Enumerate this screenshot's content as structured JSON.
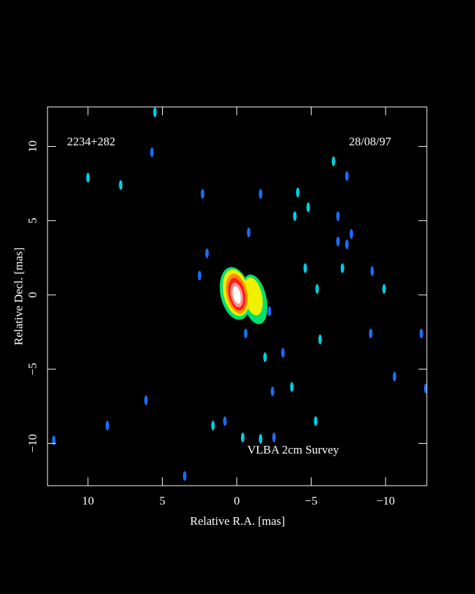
{
  "chart_data": {
    "type": "image",
    "source_name": "2234+282",
    "date": "28/08/97",
    "annotation": "VLBA 2cm Survey",
    "x_label": "Relative R.A. [mas]",
    "y_label": "Relative Decl. [mas]",
    "xlim": [
      12.72,
      -12.77
    ],
    "ylim": [
      -12.85,
      12.66
    ],
    "xticks": [
      10,
      5,
      0,
      {
        "value": -5,
        "label": "−5"
      },
      {
        "value": -10,
        "label": "−10"
      }
    ],
    "yticks": [
      {
        "value": -10,
        "label": "−10"
      },
      {
        "value": -5,
        "label": "−5"
      },
      0,
      5,
      10
    ],
    "features": [
      {
        "x": 0.1,
        "y": 0.1,
        "rx": 1.0,
        "ry": 1.8,
        "color": "#00e070"
      },
      {
        "x": -1.2,
        "y": -0.3,
        "rx": 0.8,
        "ry": 1.7,
        "color": "#00e070"
      },
      {
        "x": 0.05,
        "y": 0.15,
        "rx": 0.85,
        "ry": 1.6,
        "color": "#f0f000"
      },
      {
        "x": -1.1,
        "y": -0.1,
        "rx": 0.6,
        "ry": 1.3,
        "color": "#f0f000"
      },
      {
        "x": 0,
        "y": 0.1,
        "rx": 0.7,
        "ry": 1.35,
        "color": "#ff8c00"
      },
      {
        "x": 0,
        "y": 0.05,
        "rx": 0.55,
        "ry": 1.1,
        "color": "#ff1a1a"
      },
      {
        "x": 0,
        "y": 0,
        "rx": 0.4,
        "ry": 0.85,
        "color": "#ff9090"
      },
      {
        "x": 0,
        "y": 0,
        "rx": 0.25,
        "ry": 0.6,
        "color": "#ffffff"
      }
    ],
    "points": [
      {
        "color": "#00d0e0",
        "x": [
          10.0,
          5.5,
          7.8,
          -4.1,
          -4.8,
          -3.9,
          -6.5,
          -5.4,
          -5.6,
          -1.9,
          -3.7,
          1.6,
          -0.4,
          -1.6,
          -5.3,
          -7.1,
          -4.6,
          -9.9
        ],
        "y": [
          7.9,
          12.3,
          7.4,
          6.9,
          5.9,
          5.3,
          9.0,
          0.4,
          -3.0,
          -4.2,
          -6.2,
          -8.8,
          -9.6,
          -9.7,
          -8.5,
          1.8,
          1.8,
          0.4
        ]
      },
      {
        "color": "#1a6cff",
        "x": [
          5.7,
          2.3,
          -1.6,
          -0.8,
          2.0,
          -7.4,
          -6.8,
          -6.8,
          -7.4,
          -7.7,
          -2.2,
          -0.6,
          -9.0,
          -3.1,
          -2.4,
          -10.6,
          -12.4,
          -12.7,
          6.1,
          8.7,
          0.8,
          -2.5,
          12.3,
          3.5,
          2.5,
          -9.1
        ],
        "y": [
          9.6,
          6.8,
          6.8,
          4.2,
          2.8,
          8.0,
          5.3,
          3.6,
          3.4,
          4.1,
          -1.1,
          -2.6,
          -2.6,
          -3.9,
          -6.5,
          -5.5,
          -2.6,
          -6.3,
          -7.1,
          -8.8,
          -8.5,
          -9.6,
          -9.8,
          -12.2,
          1.3,
          1.6
        ]
      }
    ]
  }
}
